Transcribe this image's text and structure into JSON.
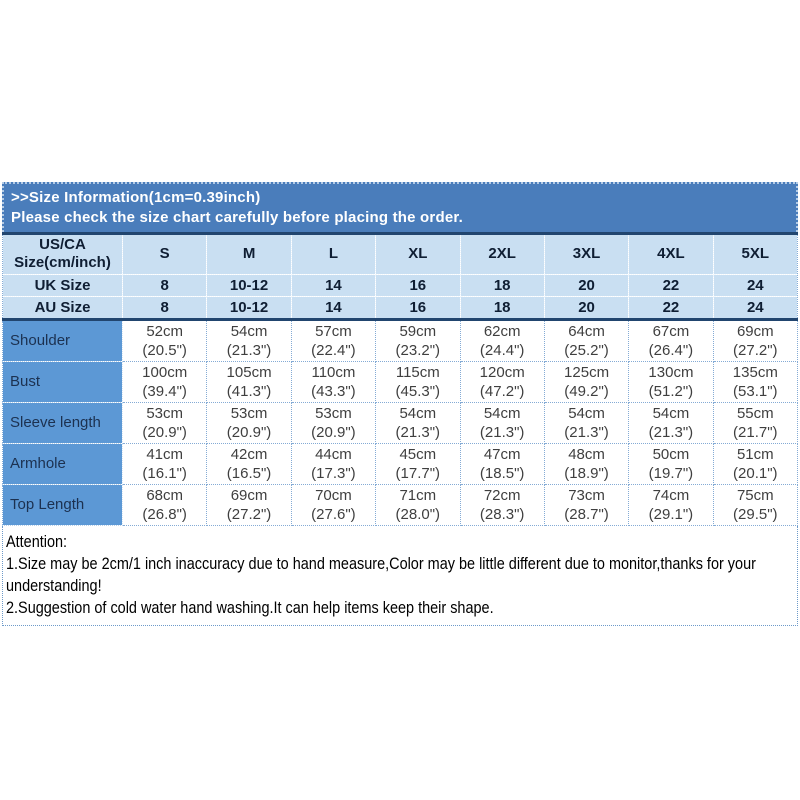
{
  "banner": {
    "title": ">>Size Information(1cm=0.39inch)",
    "subtitle": "Please check the size chart carefully before placing the order."
  },
  "table": {
    "corner": {
      "line1": "US/CA",
      "line2": "Size(cm/inch)"
    },
    "sizes": [
      "S",
      "M",
      "L",
      "XL",
      "2XL",
      "3XL",
      "4XL",
      "5XL"
    ],
    "uk_row": {
      "label": "UK Size",
      "values": [
        "8",
        "10-12",
        "14",
        "16",
        "18",
        "20",
        "22",
        "24"
      ]
    },
    "au_row": {
      "label": "AU Size",
      "values": [
        "8",
        "10-12",
        "14",
        "16",
        "18",
        "20",
        "22",
        "24"
      ]
    },
    "measurements": [
      {
        "label": "Shoulder",
        "cm": [
          "52cm",
          "54cm",
          "57cm",
          "59cm",
          "62cm",
          "64cm",
          "67cm",
          "69cm"
        ],
        "inch": [
          "(20.5\")",
          "(21.3\")",
          "(22.4\")",
          "(23.2\")",
          "(24.4\")",
          "(25.2\")",
          "(26.4\")",
          "(27.2\")"
        ]
      },
      {
        "label": "Bust",
        "cm": [
          "100cm",
          "105cm",
          "110cm",
          "115cm",
          "120cm",
          "125cm",
          "130cm",
          "135cm"
        ],
        "inch": [
          "(39.4\")",
          "(41.3\")",
          "(43.3\")",
          "(45.3\")",
          "(47.2\")",
          "(49.2\")",
          "(51.2\")",
          "(53.1\")"
        ]
      },
      {
        "label": "Sleeve length",
        "cm": [
          "53cm",
          "53cm",
          "53cm",
          "54cm",
          "54cm",
          "54cm",
          "54cm",
          "55cm"
        ],
        "inch": [
          "(20.9\")",
          "(20.9\")",
          "(20.9\")",
          "(21.3\")",
          "(21.3\")",
          "(21.3\")",
          "(21.3\")",
          "(21.7\")"
        ]
      },
      {
        "label": "Armhole",
        "cm": [
          "41cm",
          "42cm",
          "44cm",
          "45cm",
          "47cm",
          "48cm",
          "50cm",
          "51cm"
        ],
        "inch": [
          "(16.1\")",
          "(16.5\")",
          "(17.3\")",
          "(17.7\")",
          "(18.5\")",
          "(18.9\")",
          "(19.7\")",
          "(20.1\")"
        ]
      },
      {
        "label": "Top Length",
        "cm": [
          "68cm",
          "69cm",
          "70cm",
          "71cm",
          "72cm",
          "73cm",
          "74cm",
          "75cm"
        ],
        "inch": [
          "(26.8\")",
          "(27.2\")",
          "(27.6\")",
          "(28.0\")",
          "(28.3\")",
          "(28.7\")",
          "(29.1\")",
          "(29.5\")"
        ]
      }
    ]
  },
  "attention": {
    "heading": "Attention:",
    "notes": [
      "1.Size may be 2cm/1 inch inaccuracy due to hand measure,Color may be little different due to monitor,thanks for your understanding!",
      "2.Suggestion of cold water hand washing.It can help items keep their shape."
    ]
  },
  "colors": {
    "banner_blue": "#4a7dbb",
    "header_light_blue": "#c9dff2",
    "label_column_blue": "#5c98d5",
    "navy_rule": "#21456f",
    "dotted_border": "#84abd5",
    "body_text": "#3f3f3f"
  }
}
